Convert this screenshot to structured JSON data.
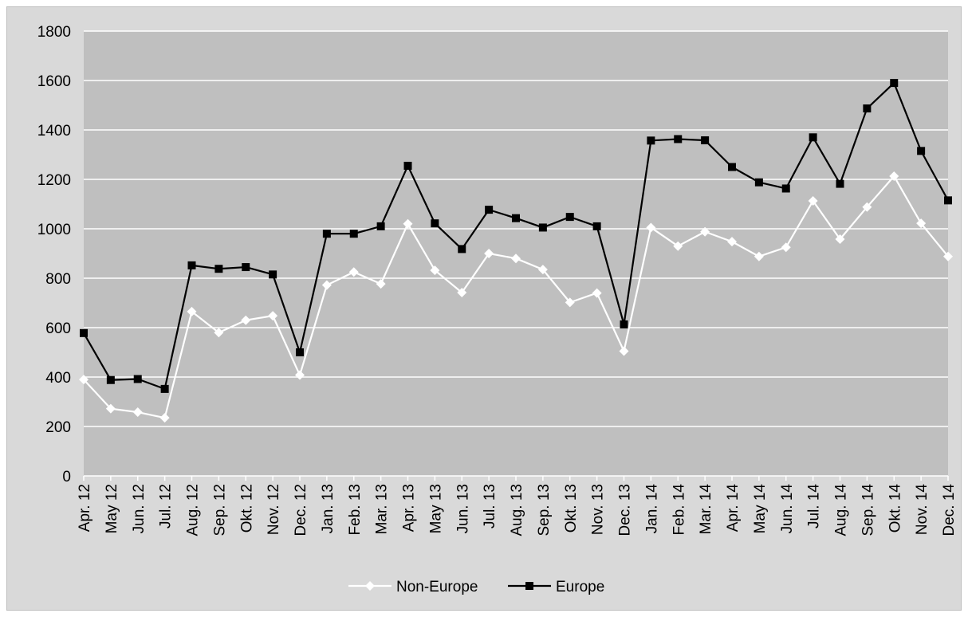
{
  "chart_data": {
    "type": "line",
    "title": "",
    "xlabel": "",
    "ylabel": "",
    "categories": [
      "Apr. 12",
      "May 12",
      "Jun. 12",
      "Jul. 12",
      "Aug. 12",
      "Sep. 12",
      "Okt. 12",
      "Nov. 12",
      "Dec. 12",
      "Jan. 13",
      "Feb. 13",
      "Mar. 13",
      "Apr. 13",
      "May 13",
      "Jun. 13",
      "Jul. 13",
      "Aug. 13",
      "Sep. 13",
      "Okt. 13",
      "Nov. 13",
      "Dec. 13",
      "Jan. 14",
      "Feb. 14",
      "Mar. 14",
      "Apr. 14",
      "May 14",
      "Jun. 14",
      "Jul. 14",
      "Aug. 14",
      "Sep. 14",
      "Okt. 14",
      "Nov. 14",
      "Dec. 14"
    ],
    "ylim": [
      0,
      1800
    ],
    "yticks": [
      "0",
      "200",
      "400",
      "600",
      "800",
      "1000",
      "1200",
      "1400",
      "1600",
      "1800"
    ],
    "grid": true,
    "legend_position": "bottom",
    "series": [
      {
        "name": "Non-Europe",
        "color": "#ffffff",
        "marker": "diamond",
        "values": [
          390,
          272,
          258,
          235,
          665,
          580,
          630,
          648,
          408,
          772,
          825,
          777,
          1020,
          832,
          742,
          900,
          880,
          835,
          702,
          740,
          505,
          1005,
          930,
          988,
          948,
          888,
          925,
          1113,
          958,
          1088,
          1213,
          1022,
          888
        ]
      },
      {
        "name": "Europe",
        "color": "#000000",
        "marker": "square",
        "values": [
          578,
          388,
          392,
          352,
          852,
          838,
          845,
          815,
          500,
          980,
          980,
          1010,
          1255,
          1022,
          918,
          1077,
          1043,
          1005,
          1048,
          1010,
          613,
          1357,
          1363,
          1358,
          1250,
          1188,
          1163,
          1370,
          1182,
          1487,
          1590,
          1315,
          1115
        ]
      }
    ]
  }
}
